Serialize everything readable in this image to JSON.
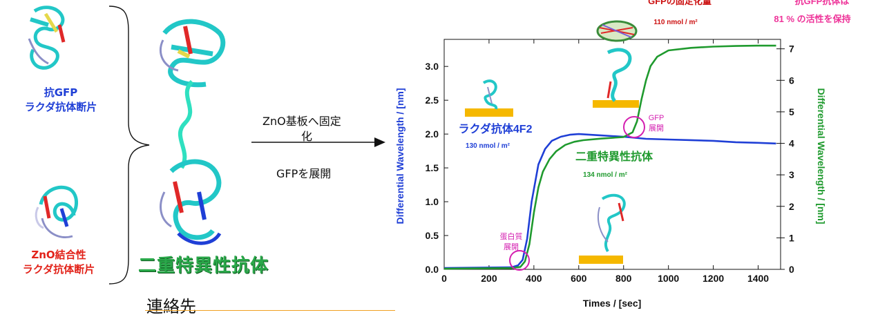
{
  "left": {
    "anti_gfp_label_line1": "抗GFP",
    "anti_gfp_label_line2": "ラクダ抗体断片",
    "zno_label_line1": "ZnO結合性",
    "zno_label_line2": "ラクダ抗体断片",
    "bispecific_label": "二重特異性抗体",
    "process_line1": "ZnO基板へ固定",
    "process_line2": "化",
    "process_line3": "GFPを展開",
    "contact": "連絡先"
  },
  "annotations": {
    "gfp_amount_title": "GFPの固定化量",
    "gfp_amount_value": "110 nmol / m²",
    "activity_line1": "抗GFP抗体は",
    "activity_line2": "81 % の活性を保持",
    "camel_ab_name": "ラクダ抗体4F2",
    "camel_ab_value": "130 nmol / m²",
    "bispecific_name": "二重特異性抗体",
    "bispecific_value": "134 nmol / m²",
    "protein_unfold_line1": "蛋白質",
    "protein_unfold_line2": "展開",
    "gfp_unfold_line1": "GFP",
    "gfp_unfold_line2": "展開"
  },
  "colors": {
    "blue_series": "#1f3fd6",
    "green_series": "#1f9a2e",
    "surface": "#f5b800",
    "marker": "#d41fb0",
    "annotation_red": "#cc1111",
    "activity_pink": "#ee3399"
  },
  "chart_data": {
    "type": "line",
    "xlabel": "Times / [sec]",
    "ylabel_left": "Differential Wavelength / [nm]",
    "ylabel_right": "Differential Wavelength / [nm]",
    "xlim": [
      0,
      1500
    ],
    "ylim_left": [
      0,
      3.4
    ],
    "ylim_right": [
      0,
      7.3
    ],
    "x_ticks": [
      0,
      200,
      400,
      600,
      800,
      1000,
      1200,
      1400
    ],
    "y_ticks_left": [
      "0.0",
      "0.5",
      "1.0",
      "1.5",
      "2.0",
      "2.5",
      "3.0"
    ],
    "y_ticks_right": [
      "0",
      "1",
      "2",
      "3",
      "4",
      "5",
      "6",
      "7"
    ],
    "series": [
      {
        "axis": "left",
        "color": "#1f3fd6",
        "x": [
          0,
          300,
          330,
          350,
          370,
          390,
          420,
          450,
          480,
          520,
          560,
          600,
          650,
          700,
          800,
          900,
          1000,
          1100,
          1200,
          1300,
          1400,
          1480
        ],
        "y": [
          0.02,
          0.03,
          0.06,
          0.14,
          0.45,
          1.0,
          1.55,
          1.78,
          1.9,
          1.96,
          1.99,
          2.0,
          1.99,
          1.98,
          1.96,
          1.93,
          1.92,
          1.91,
          1.9,
          1.88,
          1.87,
          1.86
        ]
      },
      {
        "axis": "right",
        "color": "#1f9a2e",
        "x": [
          0,
          300,
          340,
          360,
          380,
          400,
          420,
          440,
          470,
          500,
          540,
          580,
          620,
          700,
          800,
          840,
          860,
          880,
          900,
          920,
          950,
          1000,
          1100,
          1200,
          1300,
          1400,
          1480
        ],
        "y": [
          0.02,
          0.04,
          0.08,
          0.25,
          0.8,
          1.8,
          2.6,
          3.1,
          3.5,
          3.75,
          3.95,
          4.05,
          4.1,
          4.15,
          4.2,
          4.35,
          4.7,
          5.4,
          6.0,
          6.45,
          6.75,
          6.95,
          7.03,
          7.07,
          7.09,
          7.1,
          7.1
        ]
      }
    ]
  }
}
